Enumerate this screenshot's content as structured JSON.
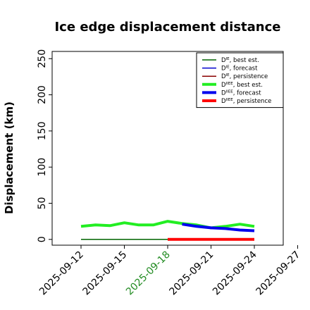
{
  "chart_data": {
    "type": "line",
    "title": "Ice edge displacement distance",
    "xlabel": "",
    "ylabel": "Displacement (km)",
    "ylim": [
      -8,
      260
    ],
    "xlim": [
      "2025-09-10",
      "2025-09-26"
    ],
    "yticks": [
      0,
      50,
      100,
      150,
      200,
      250
    ],
    "xticks": [
      {
        "date": "2025-09-12",
        "label": "2025-09-12",
        "color": "#000000"
      },
      {
        "date": "2025-09-15",
        "label": "2025-09-15",
        "color": "#000000"
      },
      {
        "date": "2025-09-18",
        "label": "2025-09-18",
        "color": "#228B22"
      },
      {
        "date": "2025-09-21",
        "label": "2025-09-21",
        "color": "#000000"
      },
      {
        "date": "2025-09-24",
        "label": "2025-09-24",
        "color": "#000000"
      },
      {
        "date": "2025-09-27",
        "label": "2025-09-27",
        "color": "#000000"
      }
    ],
    "grid": false,
    "legend_position": "top-right",
    "series": [
      {
        "name": "D^IE, best est.",
        "main": "D",
        "sup": "IE",
        "suffix": ", best est.",
        "color": "#006400",
        "width": 1.5,
        "x": [
          "2025-09-12",
          "2025-09-13",
          "2025-09-14",
          "2025-09-15",
          "2025-09-16",
          "2025-09-17",
          "2025-09-18"
        ],
        "y": [
          0,
          0,
          0,
          0,
          0,
          0,
          0
        ]
      },
      {
        "name": "D^IE, forecast",
        "main": "D",
        "sup": "IE",
        "suffix": ", forecast",
        "color": "#0000cd",
        "width": 1.5,
        "x": [],
        "y": []
      },
      {
        "name": "D^IE, persistence",
        "main": "D",
        "sup": "IE",
        "suffix": ", persistence",
        "color": "#8b0000",
        "width": 1.5,
        "x": [],
        "y": []
      },
      {
        "name": "D^IIEE, best est.",
        "main": "D",
        "sup": "IIEE",
        "suffix": ", best est.",
        "color": "#22ee22",
        "width": 4,
        "x": [
          "2025-09-12",
          "2025-09-13",
          "2025-09-14",
          "2025-09-15",
          "2025-09-16",
          "2025-09-17",
          "2025-09-18",
          "2025-09-19",
          "2025-09-20",
          "2025-09-21",
          "2025-09-22",
          "2025-09-23",
          "2025-09-24"
        ],
        "y": [
          18,
          20,
          19,
          23,
          20,
          20,
          25,
          22,
          20,
          16,
          18,
          21,
          18
        ]
      },
      {
        "name": "D^IIEE, forecast",
        "main": "D",
        "sup": "IIEE",
        "suffix": ", forecast",
        "color": "#0000ee",
        "width": 4,
        "x": [
          "2025-09-19",
          "2025-09-20",
          "2025-09-21",
          "2025-09-22",
          "2025-09-23",
          "2025-09-24"
        ],
        "y": [
          21,
          18,
          16,
          15,
          13,
          12
        ]
      },
      {
        "name": "D^IIEE, persistence",
        "main": "D",
        "sup": "IIEE",
        "suffix": ", persistence",
        "color": "#ff0000",
        "width": 4,
        "x": [
          "2025-09-18",
          "2025-09-19",
          "2025-09-20",
          "2025-09-21",
          "2025-09-22",
          "2025-09-23",
          "2025-09-24"
        ],
        "y": [
          0,
          0,
          0,
          0,
          0,
          0,
          0
        ]
      }
    ]
  }
}
